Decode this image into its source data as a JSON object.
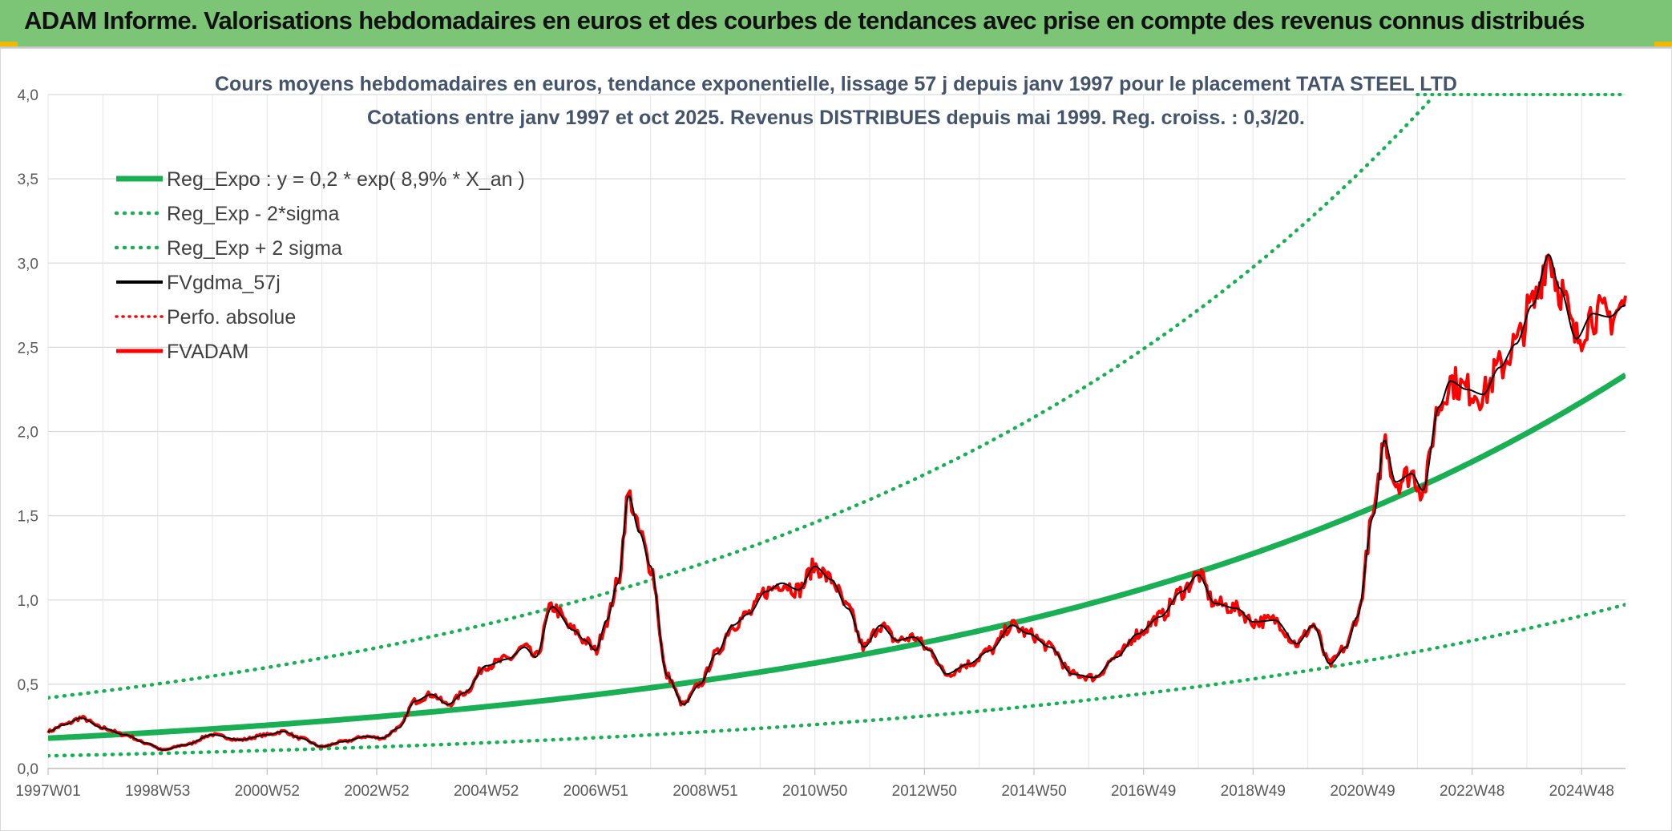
{
  "banner": {
    "title": "ADAM Informe. Valorisations hebdomadaires en euros et des courbes de tendances avec prise en compte des revenus connus distribués"
  },
  "colors": {
    "banner_bg": "#7cc576",
    "accent": "#f2b800",
    "reg_expo": "#1aaf54",
    "fvadam": "#ff0000",
    "fvgdma": "#000000",
    "perfo": "#ff0000"
  },
  "chart_data": {
    "type": "line",
    "title_line1": "Cours moyens hebdomadaires en euros, tendance exponentielle, lissage 57 j depuis janv 1997 pour le placement TATA STEEL LTD",
    "title_line2": "Cotations entre janv 1997 et oct 2025. Revenus DISTRIBUES depuis mai 1999. Reg. croiss. : 0,3/20.",
    "ylim": [
      0,
      4.0
    ],
    "yticks": [
      "0,0",
      "0,5",
      "1,0",
      "1,5",
      "2,0",
      "2,5",
      "3,0",
      "3,5",
      "4,0"
    ],
    "xlim": [
      1997.0,
      2025.8
    ],
    "x_tick_labels": [
      "1997W01",
      "1998W53",
      "2000W52",
      "2002W52",
      "2004W52",
      "2006W51",
      "2008W51",
      "2010W50",
      "2012W50",
      "2014W50",
      "2016W49",
      "2018W49",
      "2020W49",
      "2022W48",
      "2024W48"
    ],
    "x_tick_years": [
      1997.0,
      1999.0,
      2001.0,
      2003.0,
      2005.0,
      2007.0,
      2009.0,
      2011.0,
      2013.0,
      2015.0,
      2017.0,
      2019.0,
      2021.0,
      2023.0,
      2025.0
    ],
    "legend": [
      {
        "label": "Reg_Expo : y = 0,2 * exp( 8,9% *  X_an )",
        "style": "solid-green-thick"
      },
      {
        "label": "Reg_Exp - 2*sigma",
        "style": "dotted-green"
      },
      {
        "label": "Reg_Exp + 2 sigma",
        "style": "dotted-green"
      },
      {
        "label": "FVgdma_57j",
        "style": "solid-black"
      },
      {
        "label": "Perfo. absolue",
        "style": "dotted-red"
      },
      {
        "label": "FVADAM",
        "style": "solid-red"
      }
    ],
    "reg_expo": {
      "a": 0.18,
      "rate": 0.089,
      "x0": 1997.0
    },
    "reg_lower": {
      "a": 0.075,
      "rate": 0.089,
      "x0": 1997.0
    },
    "reg_upper": {
      "a": 0.42,
      "rate": 0.089,
      "x0": 1997.0
    },
    "perfo_absolue": {
      "x": [
        2022.0,
        2025.8
      ],
      "y": [
        4.0,
        4.0
      ]
    },
    "fvadam": {
      "x": [
        1997.0,
        1997.3,
        1997.6,
        1998.0,
        1998.4,
        1998.8,
        1999.1,
        1999.5,
        2000.0,
        2000.5,
        2001.0,
        2001.3,
        2001.6,
        2002.0,
        2002.4,
        2002.8,
        2003.1,
        2003.4,
        2003.7,
        2004.0,
        2004.3,
        2004.6,
        2005.0,
        2005.4,
        2005.7,
        2005.9,
        2006.2,
        2006.6,
        2006.8,
        2007.0,
        2007.2,
        2007.4,
        2007.6,
        2007.8,
        2008.0,
        2008.3,
        2008.6,
        2008.9,
        2009.2,
        2009.5,
        2009.8,
        2010.1,
        2010.4,
        2010.7,
        2011.0,
        2011.3,
        2011.6,
        2011.9,
        2012.2,
        2012.5,
        2012.8,
        2013.1,
        2013.4,
        2013.8,
        2014.2,
        2014.6,
        2014.9,
        2015.3,
        2015.7,
        2016.1,
        2016.5,
        2016.9,
        2017.3,
        2017.7,
        2018.0,
        2018.3,
        2018.7,
        2019.0,
        2019.4,
        2019.8,
        2020.1,
        2020.4,
        2020.7,
        2020.9,
        2021.2,
        2021.4,
        2021.6,
        2021.9,
        2022.1,
        2022.4,
        2022.6,
        2022.9,
        2023.2,
        2023.5,
        2023.8,
        2024.1,
        2024.4,
        2024.6,
        2024.9,
        2025.2,
        2025.5,
        2025.8
      ],
      "y": [
        0.22,
        0.26,
        0.3,
        0.24,
        0.2,
        0.15,
        0.11,
        0.14,
        0.2,
        0.17,
        0.2,
        0.22,
        0.18,
        0.13,
        0.16,
        0.19,
        0.18,
        0.24,
        0.4,
        0.44,
        0.38,
        0.45,
        0.61,
        0.65,
        0.72,
        0.66,
        0.96,
        0.82,
        0.76,
        0.7,
        0.88,
        1.1,
        1.62,
        1.4,
        1.2,
        0.55,
        0.38,
        0.5,
        0.68,
        0.85,
        0.92,
        1.05,
        1.1,
        1.06,
        1.2,
        1.12,
        0.95,
        0.72,
        0.85,
        0.76,
        0.78,
        0.7,
        0.56,
        0.62,
        0.7,
        0.85,
        0.8,
        0.72,
        0.56,
        0.54,
        0.66,
        0.8,
        0.9,
        1.05,
        1.15,
        0.98,
        0.95,
        0.87,
        0.88,
        0.74,
        0.85,
        0.62,
        0.72,
        0.9,
        1.5,
        1.95,
        1.7,
        1.75,
        1.65,
        2.15,
        2.3,
        2.25,
        2.22,
        2.38,
        2.52,
        2.75,
        3.05,
        2.85,
        2.55,
        2.7,
        2.68,
        2.75
      ]
    }
  }
}
